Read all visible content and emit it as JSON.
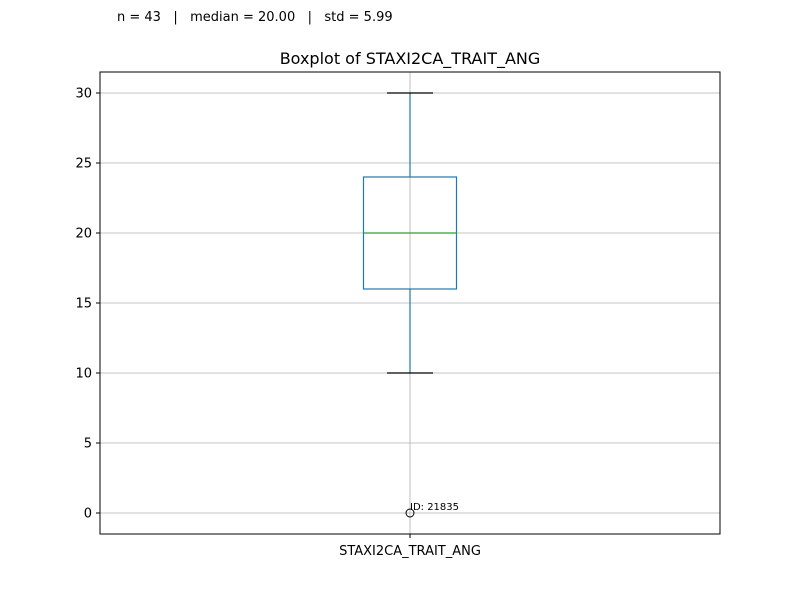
{
  "stats": {
    "line": "n = 43   |   median = 20.00   |   std = 5.99"
  },
  "chart_data": {
    "type": "boxplot",
    "title": "Boxplot of STAXI2CA_TRAIT_ANG",
    "categories": [
      "STAXI2CA_TRAIT_ANG"
    ],
    "yticks": [
      0,
      5,
      10,
      15,
      20,
      25,
      30
    ],
    "ylim": [
      -1.5,
      31.5
    ],
    "grid": true,
    "boxes": [
      {
        "category": "STAXI2CA_TRAIT_ANG",
        "whisker_low": 10,
        "q1": 16,
        "median": 20,
        "q3": 24,
        "whisker_high": 30,
        "outliers": [
          {
            "value": 0,
            "label": "ID: 21835"
          }
        ]
      }
    ],
    "colors": {
      "box": "#1f77b4",
      "median": "#2ca02c",
      "cap": "#000000",
      "grid": "#b0b0b0"
    }
  }
}
